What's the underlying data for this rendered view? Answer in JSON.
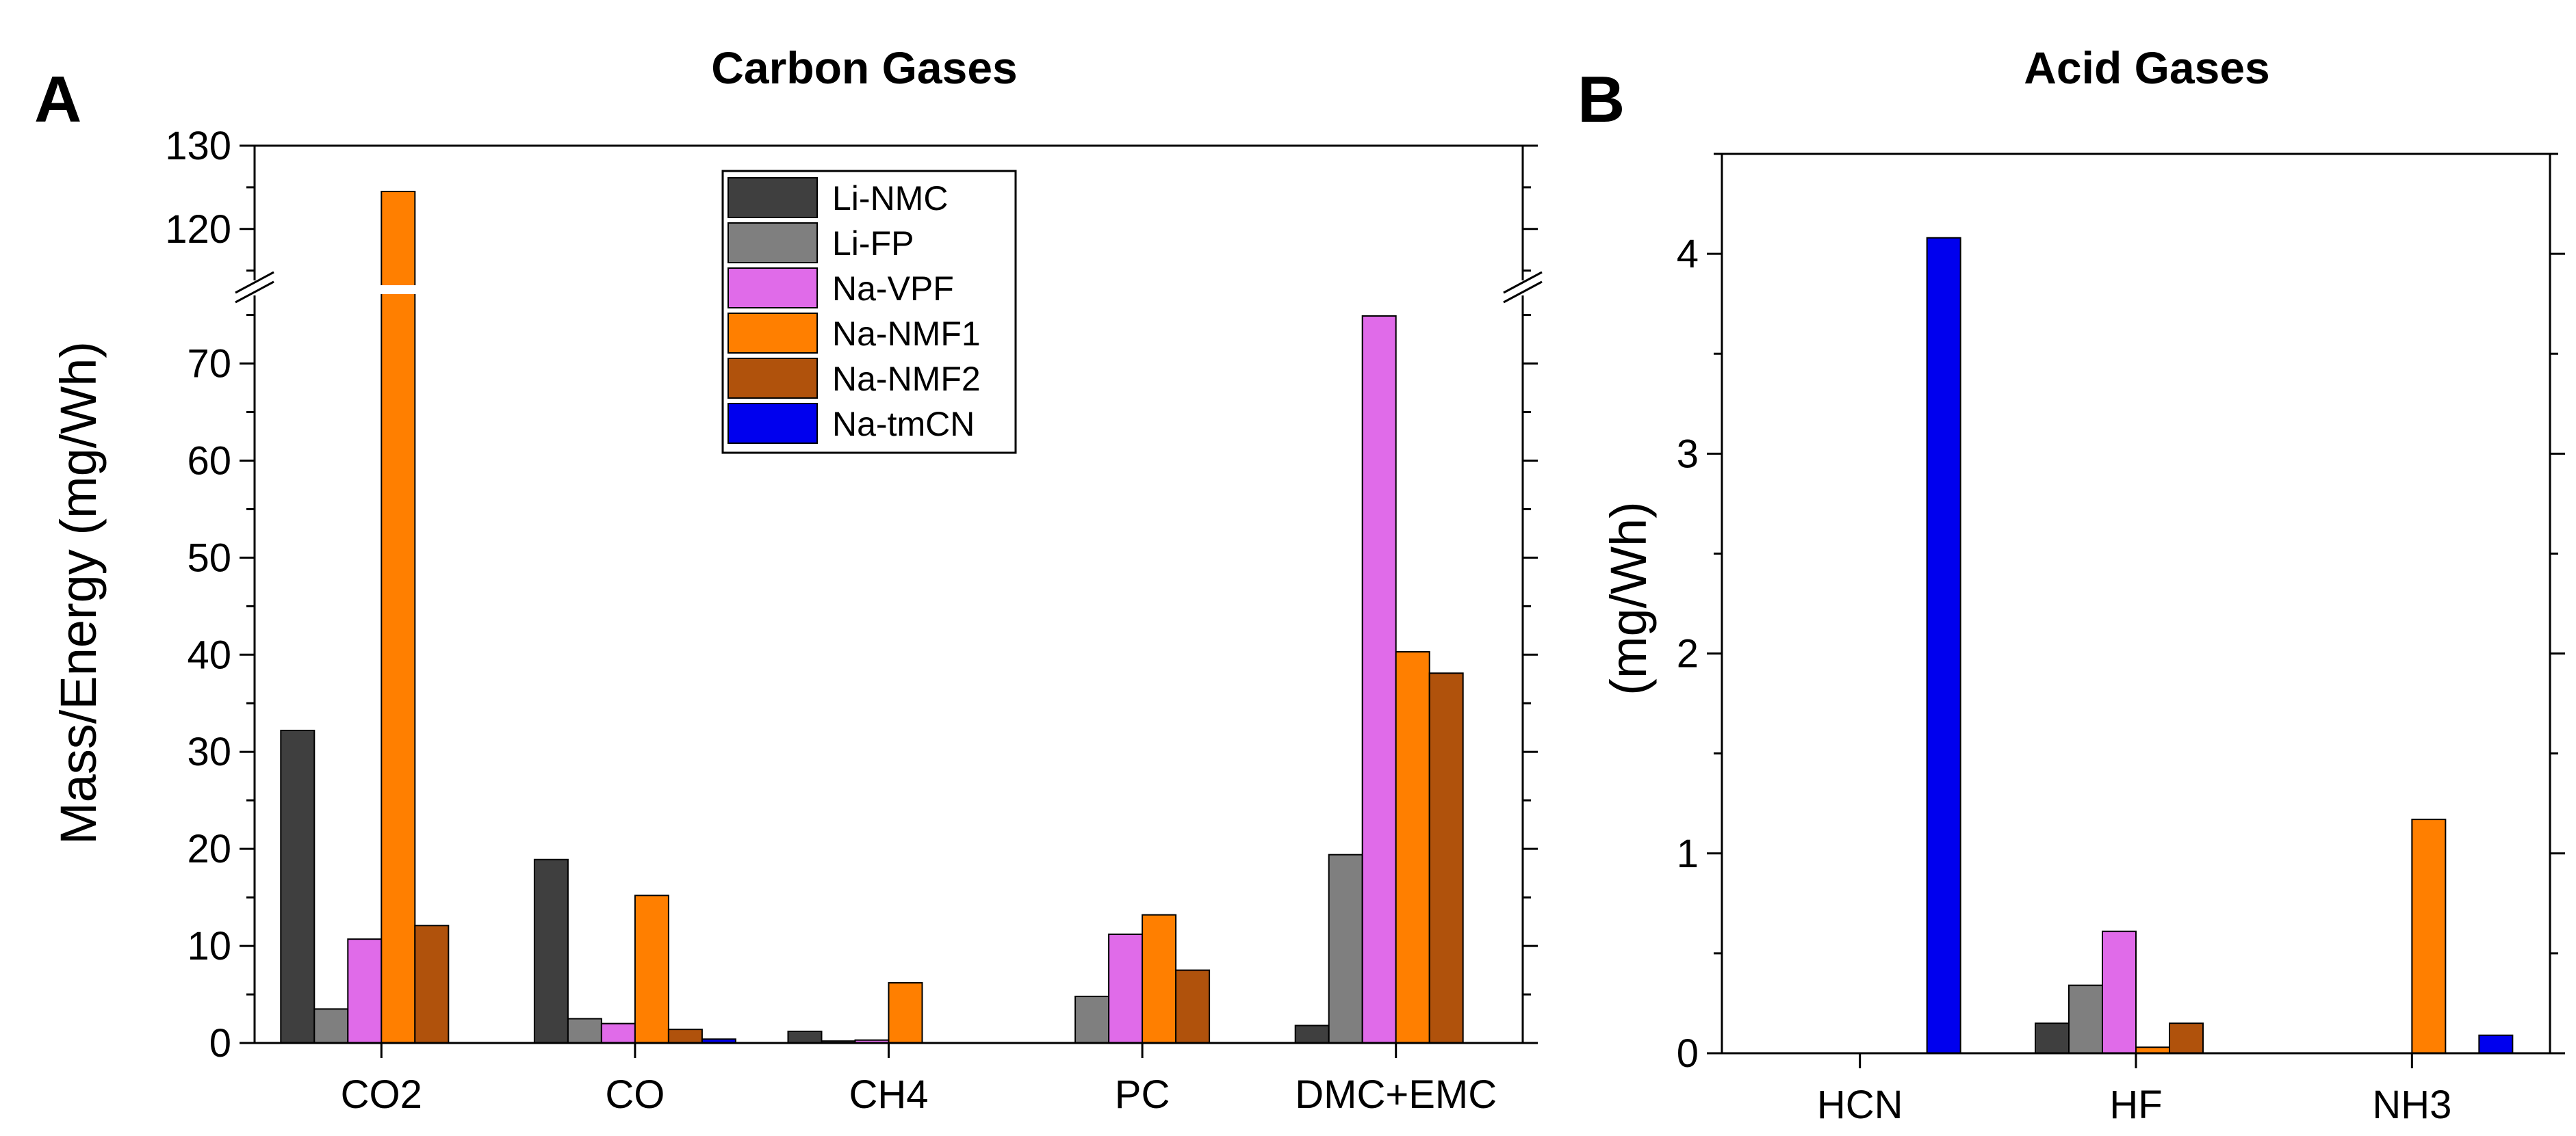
{
  "chart_data": [
    {
      "panel": "A",
      "type": "bar",
      "title": "Carbon Gases",
      "xlabel": "",
      "ylabel": "Mass/Energy (mg/Wh)",
      "categories": [
        "CO2",
        "CO",
        "CH4",
        "PC",
        "DMC+EMC"
      ],
      "y_break": {
        "lower": [
          0,
          78
        ],
        "upper": [
          113,
          130
        ]
      },
      "yticks_lower": [
        "0",
        "10",
        "20",
        "30",
        "40",
        "50",
        "60",
        "70"
      ],
      "yticks_upper": [
        "120",
        "130"
      ],
      "legend_position": "top-center",
      "series": [
        {
          "name": "Li-NMC",
          "color": "#3f3f3f",
          "values": [
            32.2,
            18.9,
            1.2,
            0,
            1.8
          ]
        },
        {
          "name": "Li-FP",
          "color": "#7f7f7f",
          "values": [
            3.5,
            2.5,
            0.2,
            4.8,
            19.4
          ]
        },
        {
          "name": "Na-VPF",
          "color": "#e06be9",
          "values": [
            10.7,
            2.0,
            0.3,
            11.2,
            74.9
          ]
        },
        {
          "name": "Na-NMF1",
          "color": "#ff7f00",
          "values": [
            124.5,
            15.2,
            6.2,
            13.2,
            40.3
          ]
        },
        {
          "name": "Na-NMF2",
          "color": "#b0520c",
          "values": [
            12.1,
            1.4,
            0,
            7.5,
            38.1
          ]
        },
        {
          "name": "Na-tmCN",
          "color": "#0000ee",
          "values": [
            0,
            0.4,
            0,
            0,
            0
          ]
        }
      ]
    },
    {
      "panel": "B",
      "type": "bar",
      "title": "Acid Gases",
      "xlabel": "",
      "ylabel": "(mg/Wh)",
      "categories": [
        "HCN",
        "HF",
        "NH3"
      ],
      "ylim": [
        0,
        4.5
      ],
      "yticks": [
        "0",
        "1",
        "2",
        "3",
        "4"
      ],
      "series": [
        {
          "name": "Li-NMC",
          "color": "#3f3f3f",
          "values": [
            0,
            0.15,
            0
          ]
        },
        {
          "name": "Li-FP",
          "color": "#7f7f7f",
          "values": [
            0,
            0.34,
            0
          ]
        },
        {
          "name": "Na-VPF",
          "color": "#e06be9",
          "values": [
            0,
            0.61,
            0
          ]
        },
        {
          "name": "Na-NMF1",
          "color": "#ff7f00",
          "values": [
            0,
            0.03,
            1.17
          ]
        },
        {
          "name": "Na-NMF2",
          "color": "#b0520c",
          "values": [
            0,
            0.15,
            0
          ]
        },
        {
          "name": "Na-tmCN",
          "color": "#0000ee",
          "values": [
            4.08,
            0,
            0.09
          ]
        }
      ]
    }
  ]
}
